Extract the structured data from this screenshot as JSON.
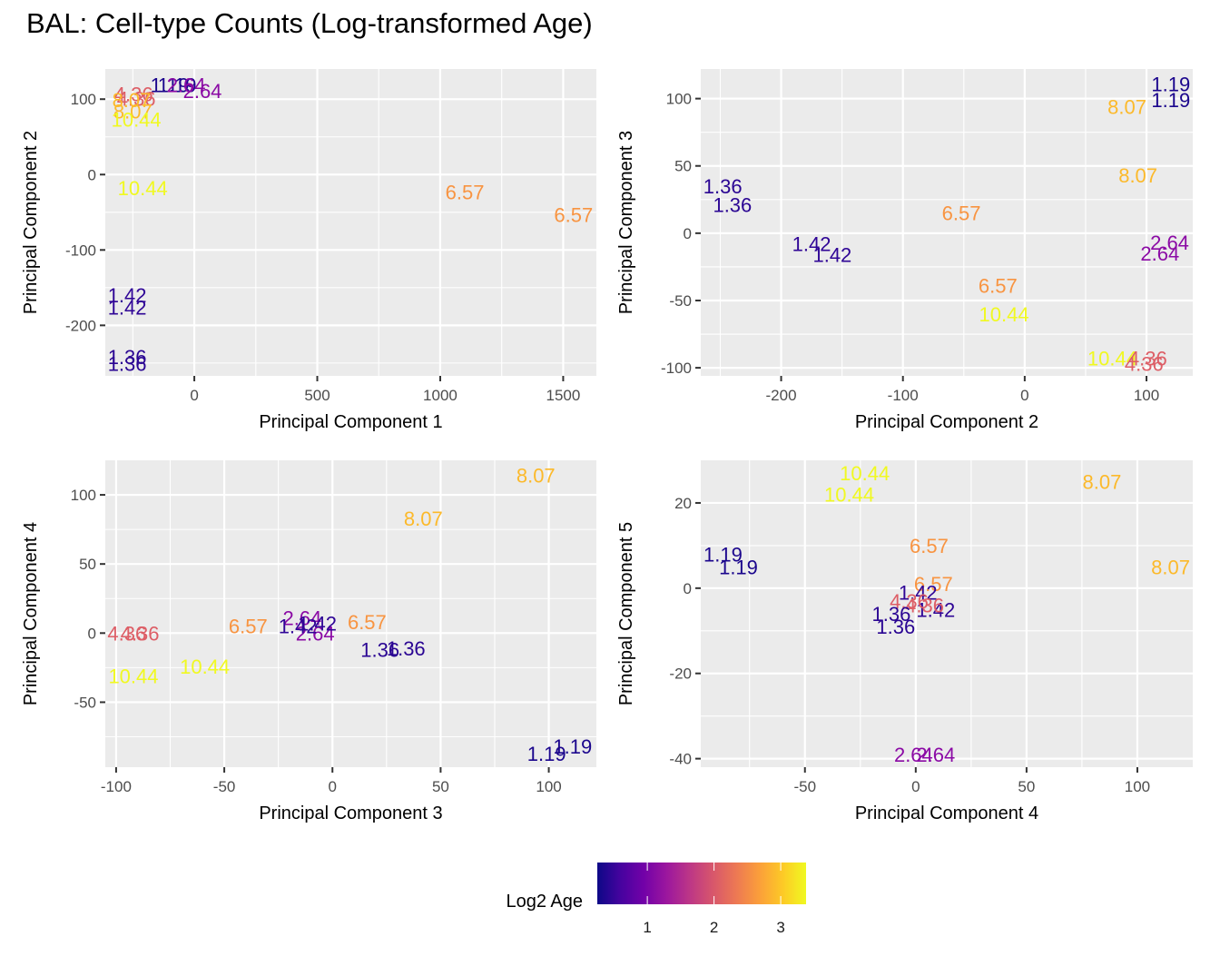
{
  "chart_data": {
    "type": "scatter",
    "title": "BAL: Cell-type Counts (Log-transformed Age)",
    "legend": {
      "title": "Log2 Age",
      "type": "colorbar",
      "palette": "plasma",
      "range": [
        0.25,
        3.38
      ],
      "ticks": [
        1,
        2,
        3
      ],
      "placement": "bottom",
      "stops": [
        "#0d0887",
        "#46039f",
        "#7201a8",
        "#9c179e",
        "#bd3786",
        "#d8576b",
        "#ed7953",
        "#fb9f3a",
        "#fdca26",
        "#f0f921"
      ]
    },
    "point_colors": {
      "1.19": "#1b068d",
      "1.36": "#2a0593",
      "1.42": "#2f0596",
      "2.64": "#8b0aa5",
      "4.36": "#dd5e66",
      "6.57": "#f89441",
      "8.07": "#fcb92a",
      "10.44": "#f0f921"
    },
    "panels": [
      {
        "xlabel": "Principal Component 1",
        "ylabel": "Principal Component 2",
        "xlim": [
          -362,
          1635
        ],
        "ylim": [
          -267,
          140
        ],
        "xticks": [
          0,
          500,
          1000,
          1500
        ],
        "yticks": [
          -200,
          -100,
          0,
          100
        ],
        "grid": true,
        "points": [
          {
            "label": "1.19",
            "x": -100,
            "y": 119
          },
          {
            "label": "1.19",
            "x": -70,
            "y": 119
          },
          {
            "label": "2.64",
            "x": -33,
            "y": 119
          },
          {
            "label": "2.64",
            "x": 33,
            "y": 111
          },
          {
            "label": "4.36",
            "x": -247,
            "y": 107
          },
          {
            "label": "4.36",
            "x": -236,
            "y": 101
          },
          {
            "label": "8.07",
            "x": -255,
            "y": 99
          },
          {
            "label": "8.07",
            "x": -250,
            "y": 84
          },
          {
            "label": "10.44",
            "x": -236,
            "y": 73
          },
          {
            "label": "10.44",
            "x": -210,
            "y": -18
          },
          {
            "label": "6.57",
            "x": 1100,
            "y": -23
          },
          {
            "label": "6.57",
            "x": 1542,
            "y": -53
          },
          {
            "label": "1.42",
            "x": -273,
            "y": -160
          },
          {
            "label": "1.42",
            "x": -273,
            "y": -176
          },
          {
            "label": "1.36",
            "x": -273,
            "y": -242
          },
          {
            "label": "1.36",
            "x": -273,
            "y": -251
          }
        ]
      },
      {
        "xlabel": "Principal Component 2",
        "ylabel": "Principal Component 3",
        "xlim": [
          -266,
          138
        ],
        "ylim": [
          -106,
          122
        ],
        "xticks": [
          -200,
          -100,
          0,
          100
        ],
        "yticks": [
          -100,
          -50,
          0,
          50,
          100
        ],
        "grid": true,
        "points": [
          {
            "label": "1.19",
            "x": 120,
            "y": 111
          },
          {
            "label": "1.19",
            "x": 120,
            "y": 99
          },
          {
            "label": "8.07",
            "x": 84,
            "y": 94
          },
          {
            "label": "8.07",
            "x": 93,
            "y": 43
          },
          {
            "label": "6.57",
            "x": -52,
            "y": 15
          },
          {
            "label": "2.64",
            "x": 119,
            "y": -7
          },
          {
            "label": "2.64",
            "x": 111,
            "y": -15
          },
          {
            "label": "6.57",
            "x": -22,
            "y": -39
          },
          {
            "label": "10.44",
            "x": -17,
            "y": -60
          },
          {
            "label": "10.44",
            "x": 72,
            "y": -93
          },
          {
            "label": "4.36",
            "x": 101,
            "y": -93
          },
          {
            "label": "4.36",
            "x": 98,
            "y": -97
          },
          {
            "label": "1.36",
            "x": -248,
            "y": 35
          },
          {
            "label": "1.36",
            "x": -240,
            "y": 21
          },
          {
            "label": "1.42",
            "x": -175,
            "y": -8
          },
          {
            "label": "1.42",
            "x": -158,
            "y": -16
          }
        ]
      },
      {
        "xlabel": "Principal Component 3",
        "ylabel": "Principal Component 4",
        "xlim": [
          -105,
          122
        ],
        "ylim": [
          -97,
          125
        ],
        "xticks": [
          -100,
          -50,
          0,
          50,
          100
        ],
        "yticks": [
          -50,
          0,
          50,
          100
        ],
        "grid": true,
        "points": [
          {
            "label": "8.07",
            "x": 94,
            "y": 114
          },
          {
            "label": "8.07",
            "x": 42,
            "y": 83
          },
          {
            "label": "4.36",
            "x": -95,
            "y": 0
          },
          {
            "label": "4.36",
            "x": -89,
            "y": 0
          },
          {
            "label": "10.44",
            "x": -92,
            "y": -31
          },
          {
            "label": "10.44",
            "x": -59,
            "y": -24
          },
          {
            "label": "6.57",
            "x": -39,
            "y": 5
          },
          {
            "label": "6.57",
            "x": 16,
            "y": 8
          },
          {
            "label": "2.64",
            "x": -14,
            "y": 11
          },
          {
            "label": "2.64",
            "x": -8,
            "y": 0
          },
          {
            "label": "1.42",
            "x": -16,
            "y": 5
          },
          {
            "label": "1.42",
            "x": -7,
            "y": 7
          },
          {
            "label": "1.36",
            "x": 22,
            "y": -12
          },
          {
            "label": "1.36",
            "x": 34,
            "y": -11
          },
          {
            "label": "1.19",
            "x": 99,
            "y": -87
          },
          {
            "label": "1.19",
            "x": 111,
            "y": -82
          }
        ]
      },
      {
        "xlabel": "Principal Component 4",
        "ylabel": "Principal Component 5",
        "xlim": [
          -97,
          125
        ],
        "ylim": [
          -42,
          30
        ],
        "xticks": [
          -50,
          0,
          50,
          100
        ],
        "yticks": [
          -40,
          -20,
          0,
          20
        ],
        "grid": true,
        "points": [
          {
            "label": "10.44",
            "x": -23,
            "y": 27
          },
          {
            "label": "10.44",
            "x": -30,
            "y": 22
          },
          {
            "label": "8.07",
            "x": 84,
            "y": 25
          },
          {
            "label": "8.07",
            "x": 115,
            "y": 5
          },
          {
            "label": "6.57",
            "x": 6,
            "y": 10
          },
          {
            "label": "6.57",
            "x": 8,
            "y": 1
          },
          {
            "label": "1.19",
            "x": -87,
            "y": 8
          },
          {
            "label": "1.19",
            "x": -80,
            "y": 5
          },
          {
            "label": "1.42",
            "x": 1,
            "y": -1
          },
          {
            "label": "1.42",
            "x": 9,
            "y": -5
          },
          {
            "label": "4.36",
            "x": -3,
            "y": -3
          },
          {
            "label": "4.36",
            "x": 4,
            "y": -4
          },
          {
            "label": "1.36",
            "x": -11,
            "y": -6
          },
          {
            "label": "1.36",
            "x": -9,
            "y": -9
          },
          {
            "label": "2.64",
            "x": -1,
            "y": -39
          },
          {
            "label": "2.64",
            "x": 9,
            "y": -39
          }
        ]
      }
    ]
  }
}
